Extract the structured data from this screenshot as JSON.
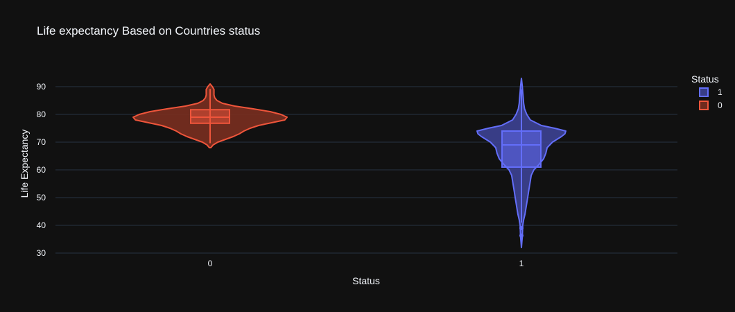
{
  "chart_data": {
    "type": "violin",
    "title": "Life expectancy Based on Countries status",
    "xlabel": "Status",
    "ylabel": "Life Expectancy",
    "ylim": [
      30,
      92
    ],
    "yticks": [
      30,
      40,
      50,
      60,
      70,
      80,
      90
    ],
    "categories": [
      "0",
      "1"
    ],
    "grid": true,
    "legend": {
      "title": "Status",
      "placement": "top-right",
      "entries": [
        "1",
        "0"
      ]
    },
    "series": [
      {
        "name": "0",
        "category": "0",
        "color": "#EF553B",
        "fill": "#7a2f20",
        "range": [
          68,
          91
        ],
        "box": {
          "q1": 76.8,
          "median": 79.0,
          "q3": 81.7,
          "whisker_low": 69.6,
          "whisker_high": 89.2
        },
        "outliers": [],
        "density": [
          [
            68,
            0.01
          ],
          [
            69,
            0.04
          ],
          [
            70,
            0.1
          ],
          [
            71,
            0.2
          ],
          [
            72,
            0.3
          ],
          [
            73,
            0.38
          ],
          [
            74,
            0.44
          ],
          [
            75,
            0.52
          ],
          [
            76,
            0.63
          ],
          [
            77,
            0.8
          ],
          [
            78,
            0.97
          ],
          [
            79,
            1.0
          ],
          [
            80,
            0.92
          ],
          [
            81,
            0.78
          ],
          [
            82,
            0.56
          ],
          [
            83,
            0.32
          ],
          [
            84,
            0.16
          ],
          [
            85,
            0.09
          ],
          [
            86,
            0.06
          ],
          [
            87,
            0.05
          ],
          [
            88,
            0.05
          ],
          [
            89,
            0.05
          ],
          [
            90,
            0.03
          ],
          [
            91,
            0.0
          ]
        ]
      },
      {
        "name": "1",
        "category": "1",
        "color": "#636EFA",
        "fill": "#3d4394",
        "range": [
          32,
          93
        ],
        "box": {
          "q1": 61.0,
          "median": 69.0,
          "q3": 74.0,
          "whisker_low": 41.0,
          "whisker_high": 89.0
        },
        "outliers": [
          39.0,
          36.3
        ],
        "density": [
          [
            32,
            0.0
          ],
          [
            34,
            0.01
          ],
          [
            36,
            0.02
          ],
          [
            38,
            0.025
          ],
          [
            40,
            0.03
          ],
          [
            42,
            0.05
          ],
          [
            44,
            0.08
          ],
          [
            46,
            0.1
          ],
          [
            48,
            0.12
          ],
          [
            50,
            0.14
          ],
          [
            52,
            0.16
          ],
          [
            54,
            0.18
          ],
          [
            56,
            0.2
          ],
          [
            58,
            0.22
          ],
          [
            60,
            0.28
          ],
          [
            62,
            0.4
          ],
          [
            64,
            0.5
          ],
          [
            66,
            0.55
          ],
          [
            68,
            0.58
          ],
          [
            70,
            0.7
          ],
          [
            72,
            0.9
          ],
          [
            73,
            0.98
          ],
          [
            74,
            1.0
          ],
          [
            75,
            0.75
          ],
          [
            76,
            0.45
          ],
          [
            78,
            0.2
          ],
          [
            80,
            0.12
          ],
          [
            82,
            0.07
          ],
          [
            84,
            0.05
          ],
          [
            86,
            0.04
          ],
          [
            88,
            0.03
          ],
          [
            90,
            0.02
          ],
          [
            93,
            0.0
          ]
        ]
      }
    ]
  }
}
